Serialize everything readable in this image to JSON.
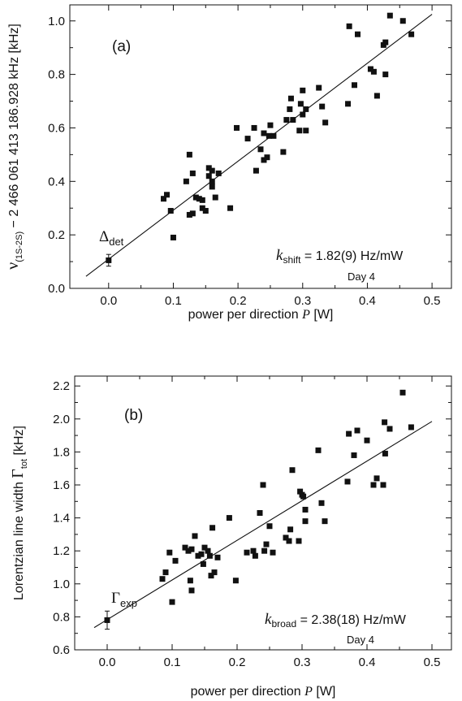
{
  "chart_data": [
    {
      "type": "scatter",
      "panel_label": "(a)",
      "xlabel": "power per direction P [W]",
      "ylabel": "ν(1S-2S) − 2 466 061 413 186.928 kHz [kHz]",
      "ylabel_parts": {
        "sym": "ν",
        "sub": "(1S-2S)",
        "rest": " − 2 466 061 413 186.928 kHz [kHz]"
      },
      "xlabel_parts": {
        "pre": "power per direction ",
        "sym": "P",
        "post": " [W]"
      },
      "xlim": [
        -0.06,
        0.53
      ],
      "ylim": [
        0.0,
        1.06
      ],
      "xticks": [
        0.0,
        0.1,
        0.2,
        0.3,
        0.4,
        0.5
      ],
      "xtick_labels": [
        "0.0",
        "0.1",
        "0.2",
        "0.3",
        "0.4",
        "0.5"
      ],
      "yticks": [
        0.0,
        0.2,
        0.4,
        0.6,
        0.8,
        1.0
      ],
      "ytick_labels": [
        "0.0",
        "0.2",
        "0.4",
        "0.6",
        "0.8",
        "1.0"
      ],
      "fit_line": {
        "x": [
          -0.035,
          0.5
        ],
        "y": [
          0.045,
          1.025
        ]
      },
      "extrapolated_point": {
        "x": 0.0,
        "y": 0.105,
        "err": 0.022
      },
      "extrapolated_label": {
        "sym": "Δ",
        "sub": "det"
      },
      "slope_annotation": {
        "sym": "k",
        "sub": "shift",
        "value": " = 1.82(9) Hz/mW",
        "day": "Day 4"
      },
      "points": {
        "x": [
          0.085,
          0.09,
          0.096,
          0.1,
          0.12,
          0.125,
          0.125,
          0.13,
          0.13,
          0.135,
          0.14,
          0.145,
          0.145,
          0.15,
          0.155,
          0.155,
          0.16,
          0.16,
          0.16,
          0.165,
          0.17,
          0.188,
          0.198,
          0.215,
          0.225,
          0.228,
          0.235,
          0.24,
          0.24,
          0.245,
          0.248,
          0.25,
          0.255,
          0.27,
          0.275,
          0.28,
          0.282,
          0.285,
          0.295,
          0.297,
          0.3,
          0.3,
          0.305,
          0.305,
          0.325,
          0.33,
          0.335,
          0.37,
          0.372,
          0.38,
          0.385,
          0.405,
          0.41,
          0.415,
          0.425,
          0.428,
          0.428,
          0.435,
          0.455,
          0.468
        ],
        "y": [
          0.335,
          0.35,
          0.29,
          0.19,
          0.4,
          0.275,
          0.5,
          0.28,
          0.43,
          0.34,
          0.335,
          0.3,
          0.33,
          0.29,
          0.42,
          0.45,
          0.38,
          0.4,
          0.44,
          0.34,
          0.43,
          0.3,
          0.6,
          0.56,
          0.6,
          0.44,
          0.52,
          0.48,
          0.58,
          0.49,
          0.57,
          0.61,
          0.57,
          0.51,
          0.63,
          0.67,
          0.71,
          0.63,
          0.59,
          0.69,
          0.65,
          0.74,
          0.59,
          0.67,
          0.75,
          0.68,
          0.62,
          0.69,
          0.98,
          0.76,
          0.95,
          0.82,
          0.81,
          0.72,
          0.91,
          0.92,
          0.8,
          1.02,
          1.0,
          0.95
        ]
      }
    },
    {
      "type": "scatter",
      "panel_label": "(b)",
      "xlabel": "power per direction P [W]",
      "ylabel": "Lorentzian line width Γtot [kHz]",
      "ylabel_parts": {
        "pre": "Lorentzian line width ",
        "sym": "Γ",
        "sub": "tot",
        "post": "   [kHz]"
      },
      "xlabel_parts": {
        "pre": "power per direction ",
        "sym": "P",
        "post": " [W]"
      },
      "xlim": [
        -0.05,
        0.53
      ],
      "ylim": [
        0.6,
        2.26
      ],
      "xticks": [
        0.0,
        0.1,
        0.2,
        0.3,
        0.4,
        0.5
      ],
      "xtick_labels": [
        "0.0",
        "0.1",
        "0.2",
        "0.3",
        "0.4",
        "0.5"
      ],
      "yticks": [
        0.6,
        0.8,
        1.0,
        1.2,
        1.4,
        1.6,
        1.8,
        2.0,
        2.2
      ],
      "ytick_labels": [
        "0.6",
        "0.8",
        "1.0",
        "1.2",
        "1.4",
        "1.6",
        "1.8",
        "2.0",
        "2.2"
      ],
      "fit_line": {
        "x": [
          -0.02,
          0.5
        ],
        "y": [
          0.735,
          1.985
        ]
      },
      "extrapolated_point": {
        "x": 0.0,
        "y": 0.78,
        "err": 0.055
      },
      "extrapolated_label": {
        "sym": "Γ",
        "sub": "exp"
      },
      "slope_annotation": {
        "sym": "k",
        "sub": "broad",
        "value": " = 2.38(18) Hz/mW",
        "day": "Day 4"
      },
      "points": {
        "x": [
          0.085,
          0.09,
          0.096,
          0.1,
          0.105,
          0.12,
          0.125,
          0.128,
          0.13,
          0.13,
          0.135,
          0.14,
          0.145,
          0.148,
          0.15,
          0.155,
          0.158,
          0.16,
          0.162,
          0.165,
          0.17,
          0.188,
          0.198,
          0.215,
          0.225,
          0.228,
          0.235,
          0.24,
          0.242,
          0.245,
          0.25,
          0.255,
          0.275,
          0.28,
          0.282,
          0.285,
          0.295,
          0.297,
          0.3,
          0.302,
          0.305,
          0.305,
          0.325,
          0.33,
          0.335,
          0.37,
          0.372,
          0.38,
          0.385,
          0.4,
          0.41,
          0.415,
          0.425,
          0.427,
          0.428,
          0.435,
          0.455,
          0.468
        ],
        "y": [
          1.03,
          1.07,
          1.19,
          0.89,
          1.14,
          1.22,
          1.2,
          1.02,
          0.96,
          1.21,
          1.29,
          1.17,
          1.18,
          1.12,
          1.22,
          1.2,
          1.17,
          1.05,
          1.34,
          1.07,
          1.16,
          1.4,
          1.02,
          1.19,
          1.2,
          1.17,
          1.43,
          1.6,
          1.2,
          1.24,
          1.35,
          1.19,
          1.28,
          1.26,
          1.33,
          1.69,
          1.26,
          1.56,
          1.54,
          1.53,
          1.45,
          1.38,
          1.81,
          1.49,
          1.38,
          1.62,
          1.91,
          1.78,
          1.93,
          1.87,
          1.6,
          1.64,
          1.6,
          1.98,
          1.79,
          1.94,
          2.16,
          1.95
        ]
      }
    }
  ]
}
